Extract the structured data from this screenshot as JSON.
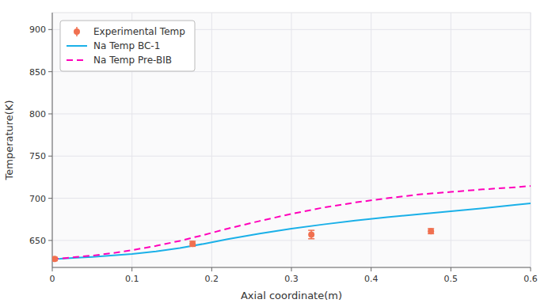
{
  "chart_data": {
    "type": "line",
    "x_label": "Axial coordinate(m)",
    "y_label": "Temperature(K)",
    "xlim": [
      0,
      0.6
    ],
    "ylim": [
      618,
      920
    ],
    "xticks": [
      0,
      0.1,
      0.2,
      0.3,
      0.4,
      0.5,
      0.6
    ],
    "yticks": [
      650,
      700,
      750,
      800,
      850,
      900
    ],
    "grid": true,
    "legend": "upper left",
    "series": [
      {
        "name": "Experimental Temp",
        "type": "scatter",
        "marker": "circle",
        "color": "#f07050",
        "x": [
          0.003,
          0.176,
          0.325,
          0.475
        ],
        "values": [
          628,
          646,
          657,
          661
        ],
        "errors": [
          2,
          3,
          5,
          3
        ]
      },
      {
        "name": "Na Temp BC-1",
        "type": "line",
        "line_style": "solid",
        "color": "#1ab0e8",
        "x": [
          0.0,
          0.01,
          0.03,
          0.05,
          0.08,
          0.1,
          0.13,
          0.16,
          0.19,
          0.22,
          0.26,
          0.3,
          0.34,
          0.38,
          0.42,
          0.46,
          0.5,
          0.54,
          0.58,
          0.6
        ],
        "values": [
          628,
          628.3,
          629.5,
          630.5,
          632.5,
          634.0,
          637.0,
          641.0,
          646.0,
          651.5,
          658.0,
          664.0,
          669.0,
          673.5,
          677.5,
          681.0,
          684.5,
          688.0,
          692.0,
          694.0
        ]
      },
      {
        "name": "Na Temp Pre-BIB",
        "type": "line",
        "line_style": "dashed",
        "color": "#ff00bb",
        "x": [
          0.0,
          0.01,
          0.03,
          0.05,
          0.08,
          0.1,
          0.13,
          0.16,
          0.19,
          0.22,
          0.26,
          0.3,
          0.34,
          0.38,
          0.42,
          0.46,
          0.5,
          0.54,
          0.58,
          0.6
        ],
        "values": [
          628,
          628.5,
          630.5,
          632.0,
          635.5,
          638.5,
          643.5,
          649.5,
          656.5,
          664.0,
          673.0,
          681.5,
          689.0,
          695.0,
          700.0,
          704.5,
          707.5,
          710.5,
          713.0,
          714.5
        ]
      }
    ]
  }
}
